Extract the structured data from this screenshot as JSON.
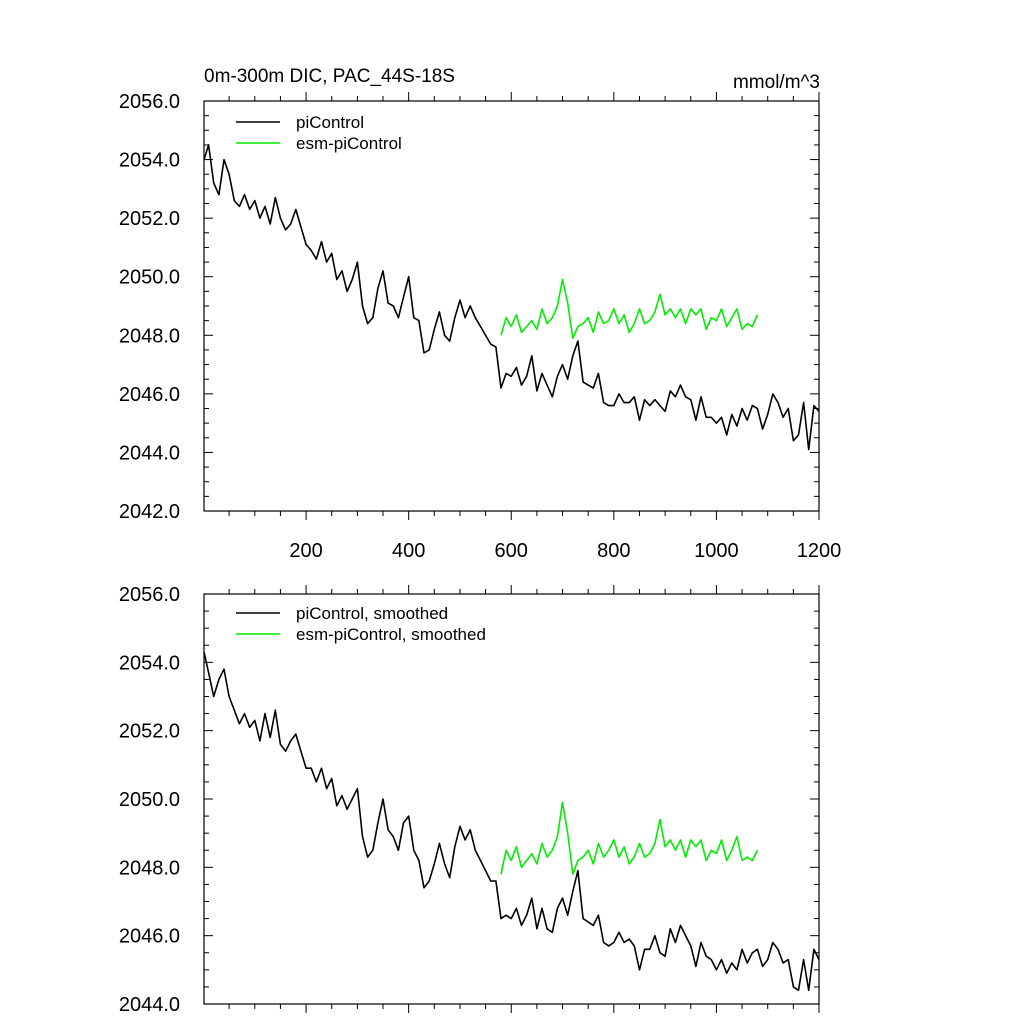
{
  "chart_data": [
    {
      "type": "line",
      "title": "0m-300m DIC, PAC_44S-18S",
      "units": "mmol/m^3",
      "xlabel": "",
      "ylabel": "",
      "xlim": [
        1,
        1200
      ],
      "ylim": [
        2042,
        2056
      ],
      "x_ticks": [
        200,
        400,
        600,
        800,
        1000,
        1200
      ],
      "y_ticks": [
        2042,
        2044,
        2046,
        2048,
        2050,
        2052,
        2054,
        2056
      ],
      "y_tick_labels": [
        "2042.0",
        "2044.0",
        "2046.0",
        "2048.0",
        "2050.0",
        "2052.0",
        "2054.0",
        "2056.0"
      ],
      "x_tick_labels": [
        "200",
        "400",
        "600",
        "800",
        "1000",
        "1200"
      ],
      "legend_position": "top-left",
      "series": [
        {
          "name": "piControl",
          "color": "#000000",
          "x": [
            1,
            10,
            20,
            30,
            40,
            50,
            60,
            70,
            80,
            90,
            100,
            110,
            120,
            130,
            140,
            150,
            160,
            170,
            180,
            190,
            200,
            210,
            220,
            230,
            240,
            250,
            260,
            270,
            280,
            290,
            300,
            310,
            320,
            330,
            340,
            350,
            360,
            370,
            380,
            390,
            400,
            410,
            420,
            430,
            440,
            450,
            460,
            470,
            480,
            490,
            500,
            510,
            520,
            530,
            540,
            550,
            560,
            570,
            580,
            590,
            600,
            610,
            620,
            630,
            640,
            650,
            660,
            670,
            680,
            690,
            700,
            710,
            720,
            730,
            740,
            750,
            760,
            770,
            780,
            790,
            800,
            810,
            820,
            830,
            840,
            850,
            860,
            870,
            880,
            890,
            900,
            910,
            920,
            930,
            940,
            950,
            960,
            970,
            980,
            990,
            1000,
            1010,
            1020,
            1030,
            1040,
            1050,
            1060,
            1070,
            1080,
            1090,
            1100,
            1110,
            1120,
            1130,
            1140,
            1150,
            1160,
            1170,
            1180,
            1190,
            1200
          ],
          "values": [
            2054.0,
            2054.5,
            2053.2,
            2052.8,
            2054.0,
            2053.5,
            2052.6,
            2052.4,
            2052.8,
            2052.3,
            2052.6,
            2052.0,
            2052.4,
            2051.8,
            2052.7,
            2052.0,
            2051.6,
            2051.8,
            2052.3,
            2051.7,
            2051.1,
            2050.9,
            2050.6,
            2051.2,
            2050.5,
            2050.8,
            2049.9,
            2050.2,
            2049.5,
            2049.9,
            2050.5,
            2049.0,
            2048.4,
            2048.6,
            2049.6,
            2050.2,
            2049.1,
            2049.0,
            2048.6,
            2049.3,
            2050.0,
            2048.6,
            2048.5,
            2047.4,
            2047.5,
            2048.2,
            2048.8,
            2048.0,
            2047.8,
            2048.6,
            2049.2,
            2048.6,
            2049.0,
            2048.6,
            2048.3,
            2048.0,
            2047.7,
            2047.6,
            2046.2,
            2046.7,
            2046.6,
            2046.9,
            2046.3,
            2046.6,
            2047.3,
            2046.1,
            2046.7,
            2046.3,
            2045.9,
            2046.6,
            2047.0,
            2046.5,
            2047.3,
            2047.8,
            2046.4,
            2046.3,
            2046.2,
            2046.7,
            2045.7,
            2045.6,
            2045.6,
            2046.0,
            2045.7,
            2045.7,
            2045.9,
            2045.1,
            2045.8,
            2045.6,
            2045.8,
            2045.6,
            2045.4,
            2046.1,
            2045.9,
            2046.3,
            2045.9,
            2045.8,
            2045.1,
            2045.9,
            2045.2,
            2045.2,
            2045.0,
            2045.2,
            2044.6,
            2045.3,
            2044.9,
            2045.5,
            2045.1,
            2045.6,
            2045.5,
            2044.8,
            2045.3,
            2046.0,
            2045.7,
            2045.2,
            2045.5,
            2044.4,
            2044.6,
            2045.7,
            2044.1,
            2045.6,
            2045.4
          ]
        },
        {
          "name": "esm-piControl",
          "color": "#00ee00",
          "x": [
            580,
            590,
            600,
            610,
            620,
            630,
            640,
            650,
            660,
            670,
            680,
            690,
            700,
            710,
            720,
            730,
            740,
            750,
            760,
            770,
            780,
            790,
            800,
            810,
            820,
            830,
            840,
            850,
            860,
            870,
            880,
            890,
            900,
            910,
            920,
            930,
            940,
            950,
            960,
            970,
            980,
            990,
            1000,
            1010,
            1020,
            1030,
            1040,
            1050,
            1060,
            1070,
            1080
          ],
          "values": [
            2048.0,
            2048.6,
            2048.3,
            2048.7,
            2048.1,
            2048.3,
            2048.5,
            2048.2,
            2048.9,
            2048.4,
            2048.6,
            2049.0,
            2049.9,
            2049.1,
            2047.9,
            2048.3,
            2048.4,
            2048.6,
            2048.1,
            2048.8,
            2048.4,
            2048.5,
            2048.9,
            2048.4,
            2048.7,
            2048.1,
            2048.4,
            2048.9,
            2048.4,
            2048.5,
            2048.8,
            2049.4,
            2048.7,
            2048.9,
            2048.6,
            2048.9,
            2048.4,
            2048.9,
            2048.7,
            2048.9,
            2048.2,
            2048.6,
            2048.5,
            2048.9,
            2048.3,
            2048.6,
            2048.9,
            2048.2,
            2048.4,
            2048.3,
            2048.7
          ]
        }
      ]
    },
    {
      "type": "line",
      "title": "",
      "xlabel": "",
      "ylabel": "",
      "xlim": [
        1,
        1200
      ],
      "ylim": [
        2044,
        2056
      ],
      "y_ticks": [
        2044,
        2046,
        2048,
        2050,
        2052,
        2054,
        2056
      ],
      "y_tick_labels": [
        "2044.0",
        "2046.0",
        "2048.0",
        "2050.0",
        "2052.0",
        "2054.0",
        "2056.0"
      ],
      "legend_position": "top-left",
      "series": [
        {
          "name": "piControl, smoothed",
          "color": "#000000",
          "x": [
            1,
            10,
            20,
            30,
            40,
            50,
            60,
            70,
            80,
            90,
            100,
            110,
            120,
            130,
            140,
            150,
            160,
            170,
            180,
            190,
            200,
            210,
            220,
            230,
            240,
            250,
            260,
            270,
            280,
            290,
            300,
            310,
            320,
            330,
            340,
            350,
            360,
            370,
            380,
            390,
            400,
            410,
            420,
            430,
            440,
            450,
            460,
            470,
            480,
            490,
            500,
            510,
            520,
            530,
            540,
            550,
            560,
            570,
            580,
            590,
            600,
            610,
            620,
            630,
            640,
            650,
            660,
            670,
            680,
            690,
            700,
            710,
            720,
            730,
            740,
            750,
            760,
            770,
            780,
            790,
            800,
            810,
            820,
            830,
            840,
            850,
            860,
            870,
            880,
            890,
            900,
            910,
            920,
            930,
            940,
            950,
            960,
            970,
            980,
            990,
            1000,
            1010,
            1020,
            1030,
            1040,
            1050,
            1060,
            1070,
            1080,
            1090,
            1100,
            1110,
            1120,
            1130,
            1140,
            1150,
            1160,
            1170,
            1180,
            1190,
            1200
          ],
          "values": [
            2054.3,
            2053.7,
            2053.0,
            2053.5,
            2053.8,
            2053.0,
            2052.6,
            2052.2,
            2052.5,
            2052.1,
            2052.3,
            2051.7,
            2052.5,
            2051.8,
            2052.6,
            2051.6,
            2051.4,
            2051.7,
            2051.9,
            2051.4,
            2050.9,
            2050.9,
            2050.5,
            2050.9,
            2050.3,
            2050.6,
            2049.8,
            2050.1,
            2049.7,
            2050.0,
            2050.3,
            2048.9,
            2048.3,
            2048.5,
            2049.3,
            2050.0,
            2049.1,
            2048.9,
            2048.5,
            2049.3,
            2049.5,
            2048.5,
            2048.2,
            2047.4,
            2047.6,
            2048.1,
            2048.7,
            2048.1,
            2047.7,
            2048.6,
            2049.2,
            2048.8,
            2049.1,
            2048.5,
            2048.2,
            2047.9,
            2047.6,
            2047.6,
            2046.5,
            2046.6,
            2046.5,
            2046.8,
            2046.3,
            2046.6,
            2047.1,
            2046.2,
            2046.8,
            2046.2,
            2046.1,
            2046.8,
            2047.1,
            2046.6,
            2047.3,
            2047.9,
            2046.5,
            2046.4,
            2046.3,
            2046.6,
            2045.8,
            2045.7,
            2045.8,
            2046.1,
            2045.8,
            2045.9,
            2045.7,
            2045.0,
            2045.6,
            2045.6,
            2046.0,
            2045.5,
            2045.4,
            2046.2,
            2045.8,
            2046.3,
            2046.0,
            2045.7,
            2045.1,
            2045.8,
            2045.4,
            2045.3,
            2045.0,
            2045.3,
            2044.9,
            2045.2,
            2045.0,
            2045.6,
            2045.2,
            2045.5,
            2045.6,
            2045.1,
            2045.3,
            2045.8,
            2045.6,
            2045.2,
            2045.3,
            2044.5,
            2044.4,
            2045.3,
            2044.4,
            2045.6,
            2045.3
          ]
        },
        {
          "name": "esm-piControl, smoothed",
          "color": "#00ee00",
          "x": [
            580,
            590,
            600,
            610,
            620,
            630,
            640,
            650,
            660,
            670,
            680,
            690,
            700,
            710,
            720,
            730,
            740,
            750,
            760,
            770,
            780,
            790,
            800,
            810,
            820,
            830,
            840,
            850,
            860,
            870,
            880,
            890,
            900,
            910,
            920,
            930,
            940,
            950,
            960,
            970,
            980,
            990,
            1000,
            1010,
            1020,
            1030,
            1040,
            1050,
            1060,
            1070,
            1080
          ],
          "values": [
            2047.8,
            2048.5,
            2048.2,
            2048.6,
            2048.0,
            2048.2,
            2048.4,
            2048.1,
            2048.7,
            2048.3,
            2048.5,
            2048.9,
            2049.9,
            2049.0,
            2047.8,
            2048.2,
            2048.3,
            2048.5,
            2048.1,
            2048.7,
            2048.3,
            2048.5,
            2048.8,
            2048.3,
            2048.6,
            2048.1,
            2048.3,
            2048.7,
            2048.3,
            2048.4,
            2048.7,
            2049.4,
            2048.6,
            2048.8,
            2048.5,
            2048.8,
            2048.3,
            2048.8,
            2048.6,
            2048.8,
            2048.2,
            2048.5,
            2048.4,
            2048.8,
            2048.2,
            2048.5,
            2048.9,
            2048.2,
            2048.3,
            2048.2,
            2048.5
          ]
        }
      ]
    }
  ]
}
